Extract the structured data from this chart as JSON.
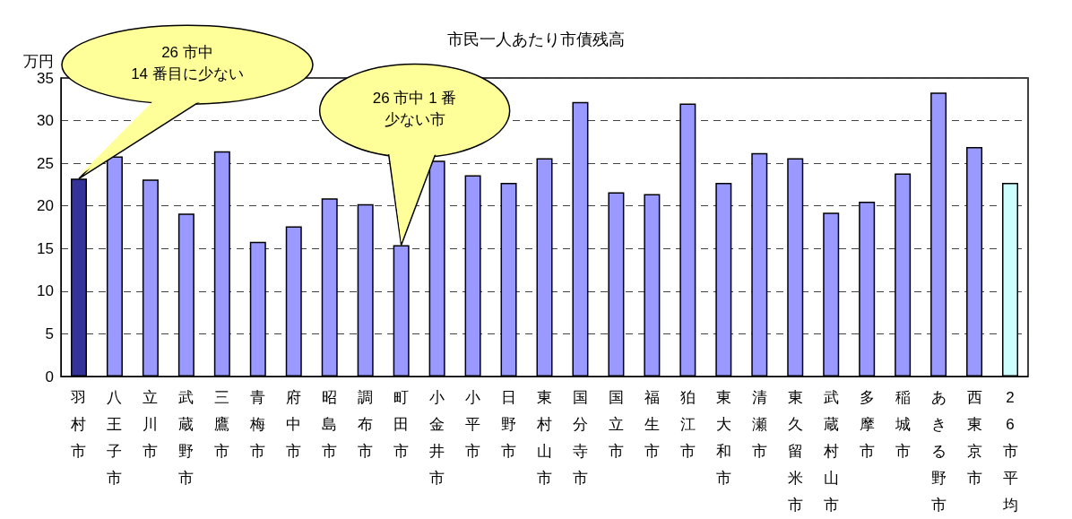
{
  "chart_data": {
    "type": "bar",
    "title": "市民一人あたり市債残高",
    "ylabel": "万円",
    "categories": [
      "羽村市",
      "八王子市",
      "立川市",
      "武蔵野市",
      "三鷹市",
      "青梅市",
      "府中市",
      "昭島市",
      "調布市",
      "町田市",
      "小金井市",
      "小平市",
      "日野市",
      "東村山市",
      "国分寺市",
      "国立市",
      "福生市",
      "狛江市",
      "東大和市",
      "清瀬市",
      "東久留米市",
      "武蔵村山市",
      "多摩市",
      "稲城市",
      "あきる野市",
      "西東京市",
      "26市平均"
    ],
    "values": [
      23.2,
      25.8,
      23.1,
      19.1,
      26.4,
      15.8,
      17.6,
      20.9,
      20.2,
      15.4,
      25.3,
      23.6,
      22.7,
      25.6,
      32.2,
      21.6,
      21.4,
      32.0,
      22.7,
      26.2,
      25.6,
      19.2,
      20.5,
      23.8,
      33.3,
      26.9,
      22.7
    ],
    "colors": [
      "#333399",
      "#9999ff",
      "#9999ff",
      "#9999ff",
      "#9999ff",
      "#9999ff",
      "#9999ff",
      "#9999ff",
      "#9999ff",
      "#9999ff",
      "#9999ff",
      "#9999ff",
      "#9999ff",
      "#9999ff",
      "#9999ff",
      "#9999ff",
      "#9999ff",
      "#9999ff",
      "#9999ff",
      "#9999ff",
      "#9999ff",
      "#9999ff",
      "#9999ff",
      "#9999ff",
      "#9999ff",
      "#9999ff",
      "#ccffff"
    ],
    "ylim": [
      0,
      35
    ],
    "yticks": [
      0,
      5,
      10,
      15,
      20,
      25,
      30,
      35
    ],
    "grid": "y",
    "annotations": [
      "26 市中14 番目に少ない",
      "26 市中 1 番少ない市"
    ]
  }
}
